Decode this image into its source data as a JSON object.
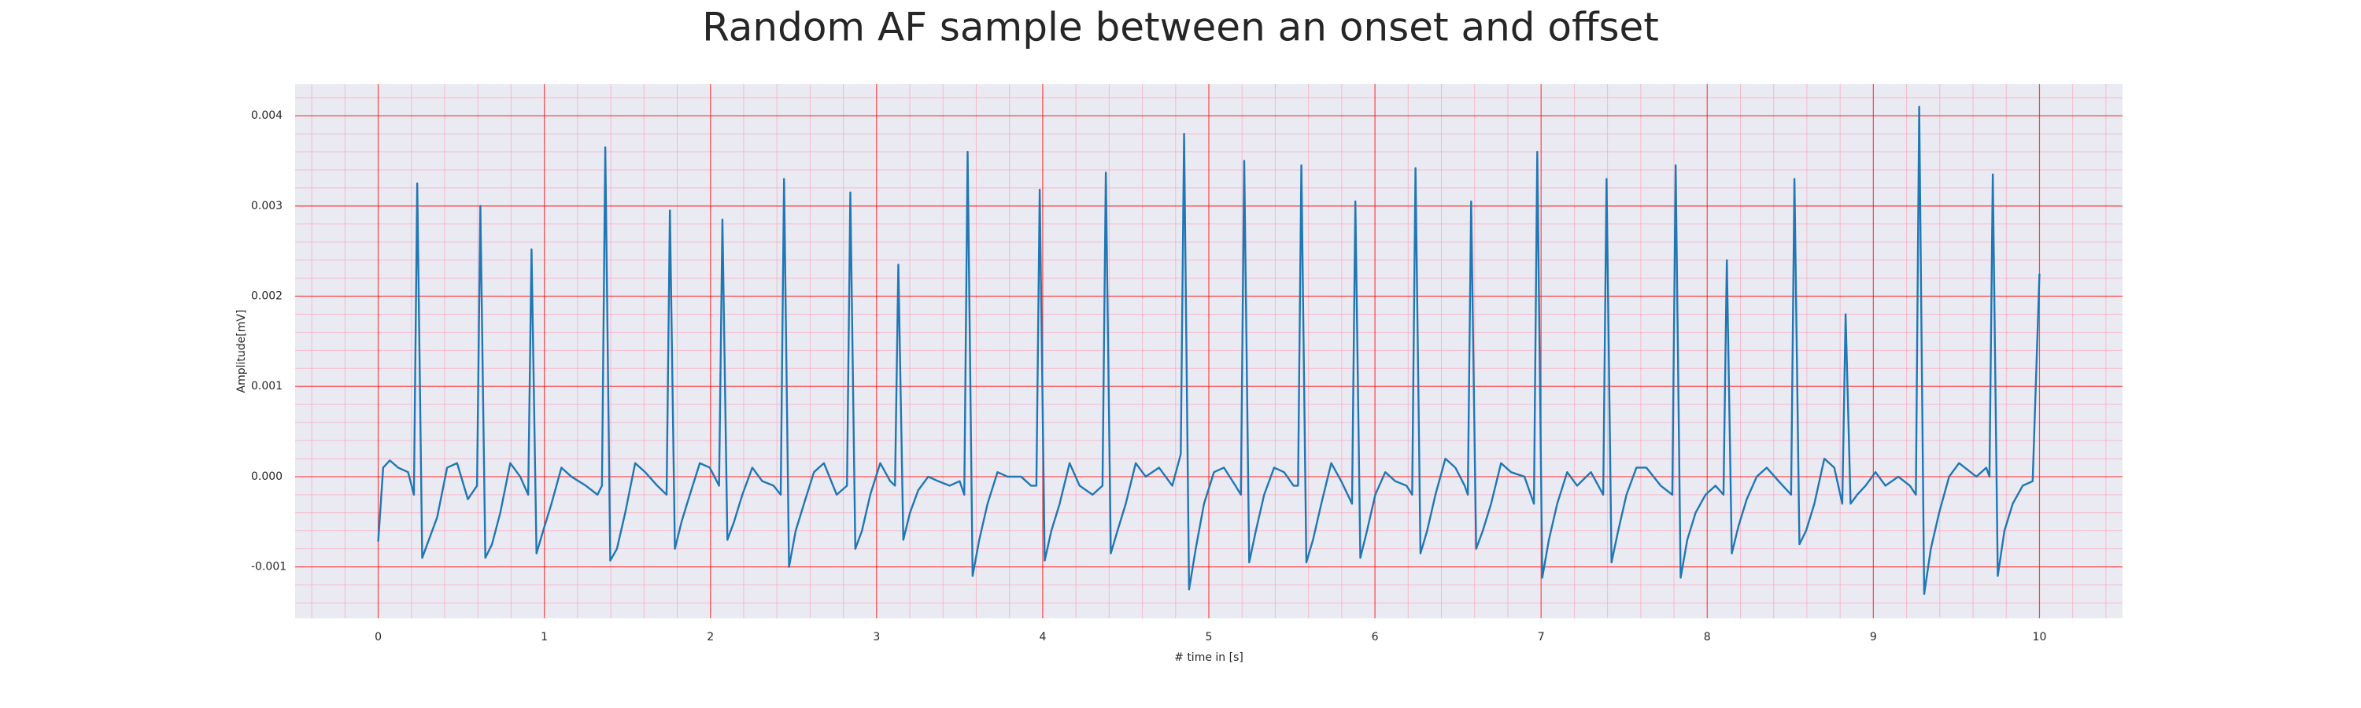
{
  "chart_data": {
    "type": "line",
    "title": "Random AF sample between an onset and offset",
    "xlabel": "# time in [s]",
    "ylabel": "Amplitude[mV]",
    "xlim": [
      -0.5,
      10.5
    ],
    "ylim": [
      -0.00157,
      0.00435
    ],
    "xticks": [
      0,
      1,
      2,
      3,
      4,
      5,
      6,
      7,
      8,
      9,
      10
    ],
    "yticks": [
      {
        "value": -0.001,
        "label": "-0.001"
      },
      {
        "value": 0,
        "label": "0.000"
      },
      {
        "value": 0.001,
        "label": "0.001"
      },
      {
        "value": 0.002,
        "label": "0.002"
      },
      {
        "value": 0.003,
        "label": "0.003"
      },
      {
        "value": 0.004,
        "label": "0.004"
      }
    ],
    "xminorticks": [
      -0.4,
      -0.2,
      0.2,
      0.4,
      0.6,
      0.8,
      1.2,
      1.4,
      1.6,
      1.8,
      2.2,
      2.4,
      2.6,
      2.8,
      3.2,
      3.4,
      3.6,
      3.8,
      4.2,
      4.4,
      4.6,
      4.8,
      5.2,
      5.4,
      5.6,
      5.8,
      6.2,
      6.4,
      6.6,
      6.8,
      7.2,
      7.4,
      7.6,
      7.8,
      8.2,
      8.4,
      8.6,
      8.8,
      9.2,
      9.4,
      9.6,
      9.8,
      10.2,
      10.4
    ],
    "yminorticks": [
      -0.0014,
      -0.0012,
      -0.0008,
      -0.0006,
      -0.0004,
      -0.0002,
      0.0002,
      0.0004,
      0.0006,
      0.0008,
      0.0012,
      0.0014,
      0.0016,
      0.0018,
      0.0022,
      0.0024,
      0.0026,
      0.0028,
      0.0032,
      0.0034,
      0.0036,
      0.0038,
      0.0042
    ],
    "grid": true,
    "minor_grid": true,
    "grid_color": "#ff0000",
    "minor_grid_color": "#ff9ab0",
    "background": "#eaeaf2",
    "series": [
      {
        "color": "#1f77b4",
        "x": [
          0,
          0.03,
          0.07,
          0.12,
          0.18,
          0.215,
          0.235,
          0.265,
          0.305,
          0.355,
          0.415,
          0.475,
          0.54,
          0.595,
          0.615,
          0.645,
          0.685,
          0.735,
          0.795,
          0.855,
          0.903,
          0.923,
          0.953,
          0.993,
          1.043,
          1.103,
          1.163,
          1.25,
          1.32,
          1.347,
          1.367,
          1.397,
          1.437,
          1.487,
          1.547,
          1.607,
          1.68,
          1.736,
          1.756,
          1.786,
          1.826,
          1.876,
          1.936,
          1.996,
          2.052,
          2.072,
          2.102,
          2.142,
          2.192,
          2.252,
          2.312,
          2.38,
          2.423,
          2.443,
          2.473,
          2.513,
          2.563,
          2.623,
          2.683,
          2.76,
          2.822,
          2.842,
          2.872,
          2.912,
          2.962,
          3.022,
          3.082,
          3.111,
          3.131,
          3.161,
          3.201,
          3.251,
          3.311,
          3.371,
          3.44,
          3.5,
          3.528,
          3.548,
          3.578,
          3.618,
          3.668,
          3.728,
          3.788,
          3.87,
          3.93,
          3.962,
          3.982,
          4.012,
          4.052,
          4.102,
          4.162,
          4.222,
          4.3,
          4.36,
          4.38,
          4.41,
          4.45,
          4.5,
          4.56,
          4.62,
          4.7,
          4.78,
          4.831,
          4.851,
          4.881,
          4.921,
          4.971,
          5.031,
          5.091,
          5.16,
          5.193,
          5.213,
          5.243,
          5.283,
          5.333,
          5.393,
          5.453,
          5.51,
          5.537,
          5.557,
          5.587,
          5.627,
          5.677,
          5.737,
          5.797,
          5.862,
          5.882,
          5.912,
          5.952,
          6.002,
          6.062,
          6.122,
          6.19,
          6.224,
          6.244,
          6.274,
          6.314,
          6.364,
          6.424,
          6.484,
          6.54,
          6.559,
          6.579,
          6.609,
          6.649,
          6.699,
          6.759,
          6.819,
          6.9,
          6.957,
          6.977,
          7.007,
          7.047,
          7.097,
          7.157,
          7.217,
          7.3,
          7.374,
          7.394,
          7.424,
          7.464,
          7.514,
          7.574,
          7.634,
          7.72,
          7.79,
          7.81,
          7.84,
          7.88,
          7.93,
          7.99,
          8.05,
          8.098,
          8.118,
          8.148,
          8.188,
          8.238,
          8.298,
          8.358,
          8.43,
          8.505,
          8.525,
          8.555,
          8.595,
          8.645,
          8.705,
          8.765,
          8.813,
          8.833,
          8.863,
          8.903,
          8.953,
          9.013,
          9.073,
          9.15,
          9.22,
          9.256,
          9.276,
          9.306,
          9.346,
          9.396,
          9.456,
          9.516,
          9.62,
          9.68,
          9.699,
          9.719,
          9.749,
          9.789,
          9.839,
          9.899,
          9.959,
          10.0
        ],
        "values": [
          -0.00072,
          0.0001,
          0.00018,
          0.0001,
          5e-05,
          -0.0002,
          0.00325,
          -0.0009,
          -0.0007,
          -0.00045,
          0.0001,
          0.00015,
          -0.00025,
          -0.0001,
          0.003,
          -0.0009,
          -0.00075,
          -0.0004,
          0.00015,
          0,
          -0.0002,
          0.00252,
          -0.00085,
          -0.0006,
          -0.0003,
          0.0001,
          0,
          -0.0001,
          -0.0002,
          -0.0001,
          0.00365,
          -0.00093,
          -0.0008,
          -0.0004,
          0.00015,
          5e-05,
          -0.0001,
          -0.0002,
          0.00295,
          -0.0008,
          -0.0005,
          -0.0002,
          0.00015,
          0.0001,
          -0.0001,
          0.00285,
          -0.0007,
          -0.0005,
          -0.0002,
          0.0001,
          -5e-05,
          -0.0001,
          -0.0002,
          0.0033,
          -0.001,
          -0.0006,
          -0.0003,
          5e-05,
          0.00015,
          -0.0002,
          -0.0001,
          0.00315,
          -0.0008,
          -0.0006,
          -0.0002,
          0.00015,
          -5e-05,
          -0.0001,
          0.00235,
          -0.0007,
          -0.0004,
          -0.00015,
          0,
          -5e-05,
          -0.0001,
          -5e-05,
          -0.0002,
          0.0036,
          -0.0011,
          -0.0007,
          -0.0003,
          5e-05,
          0,
          0,
          -0.0001,
          -0.0001,
          0.00318,
          -0.00093,
          -0.0006,
          -0.0003,
          0.00015,
          -0.0001,
          -0.0002,
          -0.0001,
          0.00337,
          -0.00085,
          -0.0006,
          -0.0003,
          0.00015,
          0,
          0.0001,
          -0.0001,
          0.00025,
          0.0038,
          -0.00125,
          -0.0008,
          -0.0003,
          5e-05,
          0.0001,
          -0.0001,
          -0.0002,
          0.0035,
          -0.00095,
          -0.0006,
          -0.0002,
          0.0001,
          5e-05,
          -0.0001,
          -0.0001,
          0.00345,
          -0.00095,
          -0.0007,
          -0.0003,
          0.00015,
          -5e-05,
          -0.0003,
          0.00305,
          -0.0009,
          -0.0006,
          -0.0002,
          5e-05,
          -5e-05,
          -0.0001,
          -0.0002,
          0.00342,
          -0.00085,
          -0.0006,
          -0.0002,
          0.0002,
          0.0001,
          -0.0001,
          -0.0002,
          0.00305,
          -0.0008,
          -0.0006,
          -0.0003,
          0.00015,
          5e-05,
          0,
          -0.0003,
          0.0036,
          -0.00112,
          -0.0007,
          -0.0003,
          5e-05,
          -0.0001,
          5e-05,
          -0.0002,
          0.0033,
          -0.00095,
          -0.0006,
          -0.0002,
          0.0001,
          0.0001,
          -0.0001,
          -0.0002,
          0.00345,
          -0.00112,
          -0.0007,
          -0.0004,
          -0.0002,
          -0.0001,
          -0.0002,
          0.0024,
          -0.00085,
          -0.00055,
          -0.00025,
          0,
          0.0001,
          -5e-05,
          -0.0002,
          0.0033,
          -0.00075,
          -0.0006,
          -0.0003,
          0.0002,
          0.0001,
          -0.0003,
          0.0018,
          -0.0003,
          -0.0002,
          -0.0001,
          5e-05,
          -0.0001,
          0,
          -0.0001,
          -0.0002,
          0.0041,
          -0.0013,
          -0.0008,
          -0.0004,
          0,
          0.00015,
          0,
          0.0001,
          0,
          0.00335,
          -0.0011,
          -0.0006,
          -0.0003,
          -0.0001,
          -5e-05,
          0.00225
        ]
      }
    ]
  }
}
